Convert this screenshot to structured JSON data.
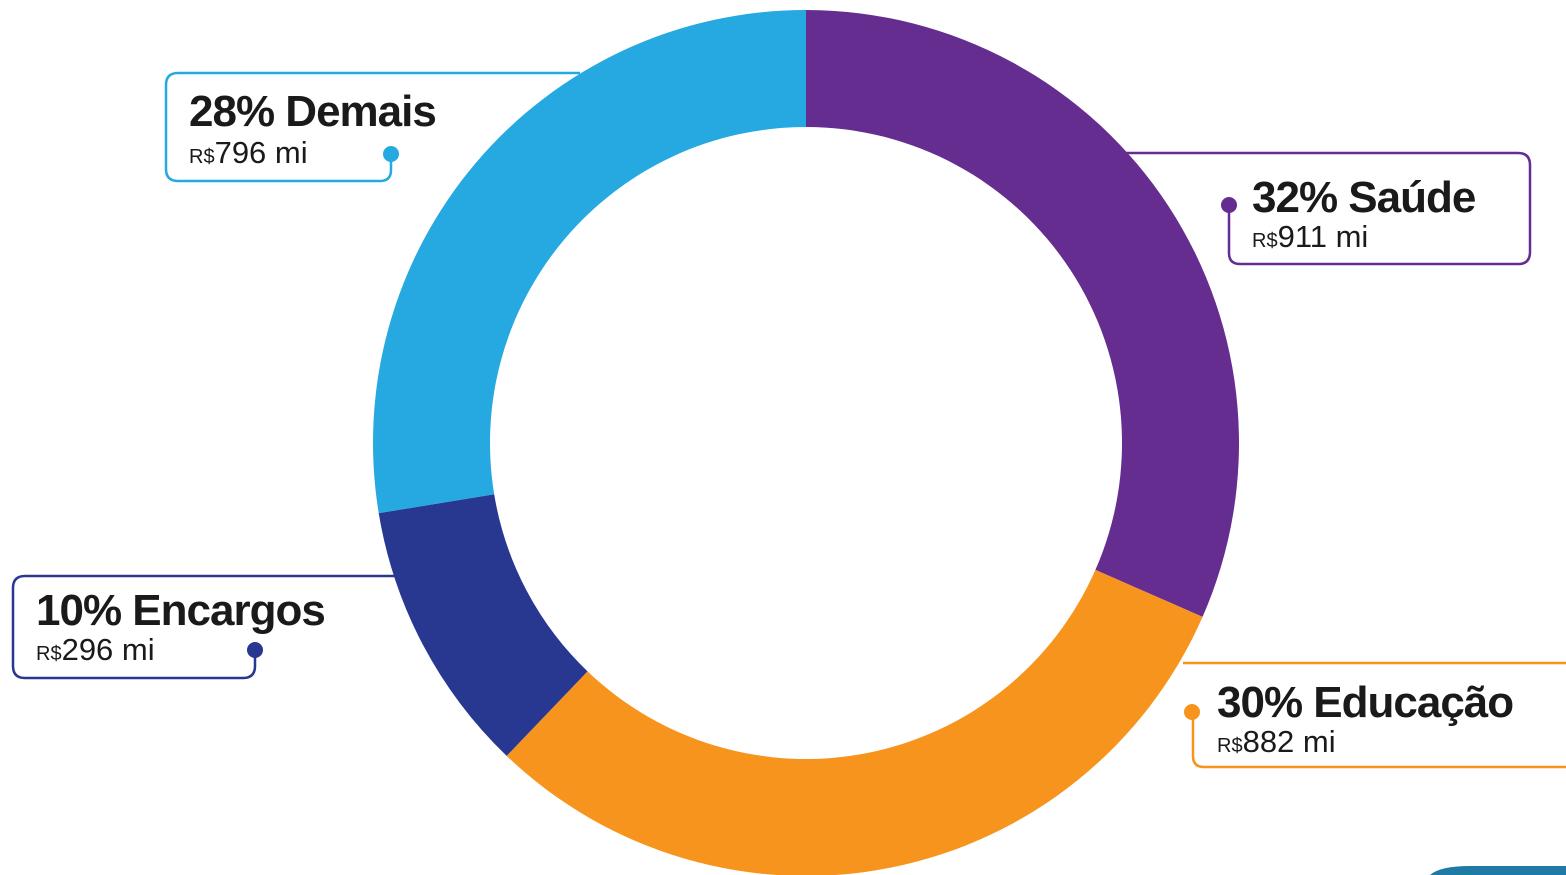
{
  "chart_data": {
    "type": "pie",
    "variant": "donut",
    "title": "",
    "currency_prefix": "R$",
    "unit_suffix": "mi",
    "slices": [
      {
        "name": "Saúde",
        "percent": 32,
        "amount": 911,
        "color": "#662D91"
      },
      {
        "name": "Educação",
        "percent": 30,
        "amount": 882,
        "color": "#F7941D"
      },
      {
        "name": "Encargos",
        "percent": 10,
        "amount": 296,
        "color": "#283891"
      },
      {
        "name": "Demais",
        "percent": 28,
        "amount": 796,
        "color": "#25A9E0"
      }
    ],
    "legend": "callouts"
  },
  "labels": {
    "saude": {
      "pct_name": "32% Saúde",
      "currency": "R$",
      "amount": "911 mi"
    },
    "educacao": {
      "pct_name": "30% Educação",
      "currency": "R$",
      "amount": "882 mi"
    },
    "encargos": {
      "pct_name": "10% Encargos",
      "currency": "R$",
      "amount": "296 mi"
    },
    "demais": {
      "pct_name": "28% Demais",
      "currency": "R$",
      "amount": "796 mi"
    }
  },
  "decor": {
    "corner_color": "#1F7AA6"
  }
}
